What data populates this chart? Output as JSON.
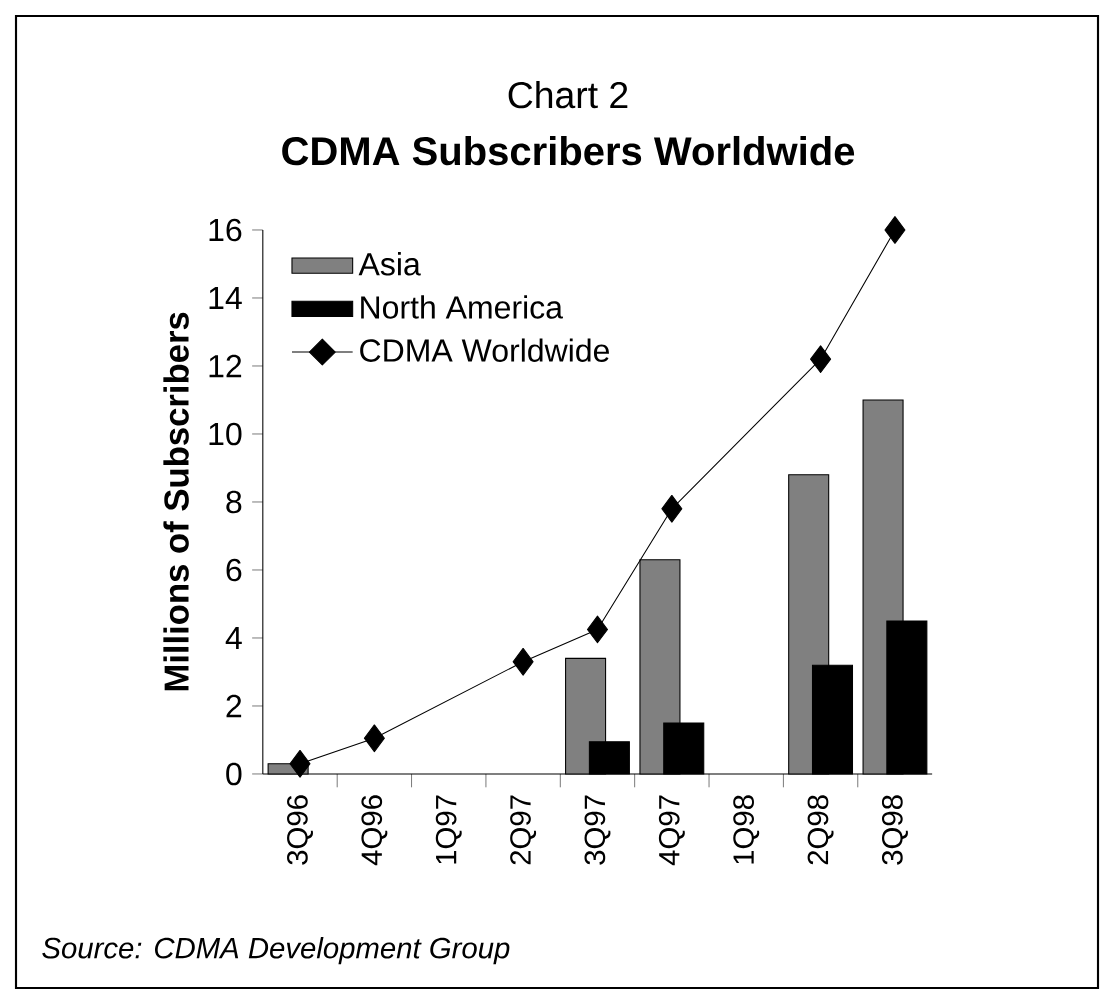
{
  "chart_data": {
    "type": "bar",
    "subtitle": "Chart 2",
    "title": "CDMA Subscribers Worldwide",
    "ylabel": "Millions of Subscribers",
    "categories": [
      "3Q96",
      "4Q96",
      "1Q97",
      "2Q97",
      "3Q97",
      "4Q97",
      "1Q98",
      "2Q98",
      "3Q98"
    ],
    "series": [
      {
        "name": "Asia",
        "color": "#808080",
        "values": [
          0.3,
          null,
          null,
          null,
          3.4,
          6.3,
          null,
          8.8,
          11.0
        ]
      },
      {
        "name": "North America",
        "color": "#000000",
        "values": [
          null,
          null,
          null,
          null,
          0.95,
          1.5,
          null,
          3.2,
          4.5
        ]
      },
      {
        "name": "CDMA Worldwide",
        "type": "line",
        "color": "#000000",
        "marker": "diamond",
        "values": [
          0.3,
          1.05,
          null,
          3.3,
          4.25,
          7.8,
          null,
          12.2,
          16.0
        ]
      }
    ],
    "ylim": [
      0,
      16
    ],
    "yticks": [
      0,
      2,
      4,
      6,
      8,
      10,
      12,
      14,
      16
    ],
    "legend": "top left",
    "annotations": [
      "*Source: CDMA Development Group*"
    ]
  }
}
